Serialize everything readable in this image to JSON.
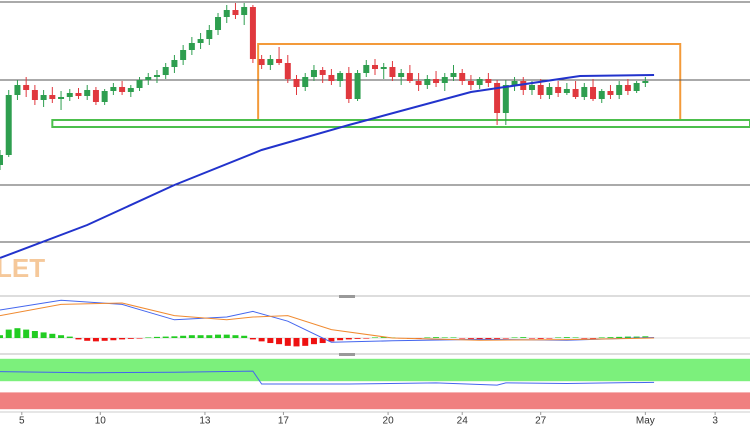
{
  "chart_data": [
    {
      "type": "candlestick",
      "watermark": "LET",
      "xlim": [
        0,
        86
      ],
      "ylim": [
        0,
        295
      ],
      "xticks": [
        {
          "value": 2.5,
          "label": "5"
        },
        {
          "value": 11.5,
          "label": "10"
        },
        {
          "value": 23.5,
          "label": "13"
        },
        {
          "value": 32.5,
          "label": "17"
        },
        {
          "value": 44.5,
          "label": "20"
        },
        {
          "value": 53,
          "label": "24"
        },
        {
          "value": 62,
          "label": "27"
        },
        {
          "value": 74,
          "label": "May"
        },
        {
          "value": 82,
          "label": "3"
        }
      ],
      "up_color": "#2e9e4f",
      "down_color": "#e0383e",
      "ohlc": [
        [
          130,
          145,
          125,
          140
        ],
        [
          140,
          205,
          138,
          200
        ],
        [
          200,
          215,
          195,
          210
        ],
        [
          210,
          218,
          198,
          205
        ],
        [
          205,
          210,
          190,
          195
        ],
        [
          195,
          205,
          188,
          200
        ],
        [
          200,
          208,
          192,
          196
        ],
        [
          196,
          204,
          185,
          198
        ],
        [
          198,
          206,
          194,
          202
        ],
        [
          202,
          207,
          196,
          199
        ],
        [
          199,
          210,
          195,
          205
        ],
        [
          205,
          208,
          190,
          193
        ],
        [
          193,
          206,
          190,
          204
        ],
        [
          204,
          212,
          200,
          208
        ],
        [
          208,
          214,
          200,
          203
        ],
        [
          203,
          210,
          198,
          207
        ],
        [
          207,
          218,
          204,
          215
        ],
        [
          215,
          222,
          210,
          218
        ],
        [
          218,
          225,
          212,
          220
        ],
        [
          220,
          232,
          216,
          228
        ],
        [
          228,
          240,
          222,
          235
        ],
        [
          235,
          250,
          230,
          245
        ],
        [
          245,
          258,
          240,
          252
        ],
        [
          252,
          262,
          246,
          256
        ],
        [
          256,
          270,
          250,
          265
        ],
        [
          265,
          282,
          260,
          278
        ],
        [
          278,
          290,
          272,
          285
        ],
        [
          285,
          292,
          276,
          280
        ],
        [
          280,
          292,
          270,
          288
        ],
        [
          288,
          290,
          232,
          236
        ],
        [
          236,
          240,
          226,
          230
        ],
        [
          230,
          240,
          225,
          236
        ],
        [
          236,
          248,
          230,
          232
        ],
        [
          232,
          240,
          212,
          216
        ],
        [
          216,
          220,
          200,
          208
        ],
        [
          208,
          222,
          204,
          218
        ],
        [
          218,
          230,
          214,
          225
        ],
        [
          225,
          228,
          212,
          220
        ],
        [
          220,
          226,
          210,
          214
        ],
        [
          214,
          224,
          208,
          222
        ],
        [
          222,
          228,
          192,
          196
        ],
        [
          196,
          225,
          194,
          222
        ],
        [
          222,
          235,
          218,
          230
        ],
        [
          230,
          236,
          220,
          226
        ],
        [
          226,
          232,
          216,
          228
        ],
        [
          228,
          234,
          214,
          218
        ],
        [
          218,
          226,
          210,
          222
        ],
        [
          222,
          230,
          212,
          214
        ],
        [
          214,
          222,
          204,
          210
        ],
        [
          210,
          220,
          206,
          216
        ],
        [
          216,
          224,
          208,
          212
        ],
        [
          212,
          222,
          204,
          218
        ],
        [
          218,
          230,
          214,
          222
        ],
        [
          222,
          226,
          210,
          214
        ],
        [
          214,
          220,
          205,
          210
        ],
        [
          210,
          218,
          206,
          216
        ],
        [
          216,
          222,
          208,
          212
        ],
        [
          212,
          215,
          170,
          182
        ],
        [
          182,
          215,
          170,
          210
        ],
        [
          210,
          218,
          204,
          214
        ],
        [
          214,
          218,
          200,
          205
        ],
        [
          205,
          214,
          200,
          210
        ],
        [
          210,
          216,
          196,
          200
        ],
        [
          200,
          212,
          196,
          208
        ],
        [
          208,
          214,
          198,
          202
        ],
        [
          202,
          212,
          200,
          206
        ],
        [
          206,
          214,
          196,
          198
        ],
        [
          198,
          212,
          195,
          208
        ],
        [
          208,
          216,
          194,
          196
        ],
        [
          196,
          206,
          192,
          204
        ],
        [
          204,
          210,
          196,
          200
        ],
        [
          200,
          214,
          196,
          210
        ],
        [
          210,
          216,
          200,
          204
        ],
        [
          204,
          214,
          202,
          212
        ],
        [
          212,
          218,
          208,
          214
        ]
      ],
      "moving_average": {
        "color": "#2233cc",
        "x": [
          0,
          10,
          20,
          30,
          40,
          54,
          66.5,
          75
        ],
        "y": [
          37,
          70,
          110,
          145,
          170,
          203,
          219,
          220
        ]
      },
      "levels": {
        "color": "#555555",
        "values": [
          293,
          215,
          110,
          53
        ]
      },
      "zones": [
        {
          "color": "#f39a3a",
          "x": [
            29.6,
            78
          ],
          "y": [
            175,
            251
          ]
        },
        {
          "color": "#4cbf4c",
          "x": [
            6,
            86
          ],
          "y": [
            168,
            175
          ]
        }
      ]
    },
    {
      "type": "macd",
      "ylim": [
        -0.5,
        1.5
      ],
      "histogram": [
        0.1,
        0.3,
        0.35,
        0.3,
        0.25,
        0.2,
        0.15,
        0.1,
        0.05,
        -0.05,
        -0.1,
        -0.12,
        -0.1,
        -0.08,
        -0.05,
        -0.03,
        -0.02,
        0.02,
        0.04,
        0.05,
        0.06,
        0.08,
        0.1,
        0.1,
        0.1,
        0.12,
        0.12,
        0.1,
        0.08,
        -0.05,
        -0.12,
        -0.18,
        -0.22,
        -0.28,
        -0.3,
        -0.28,
        -0.22,
        -0.18,
        -0.12,
        -0.08,
        -0.05,
        -0.03,
        -0.02,
        0.02,
        0.03,
        0.02,
        -0.02,
        -0.03,
        -0.02,
        0.02,
        0.03,
        0.02,
        0.02,
        -0.02,
        -0.03,
        -0.05,
        -0.04,
        -0.03,
        -0.02,
        0.02,
        0.03,
        -0.02,
        -0.03,
        -0.02,
        0.02,
        0.03,
        0.02,
        -0.02,
        -0.02,
        0.02,
        0.03,
        0.04,
        0.05,
        0.05,
        0.06
      ],
      "pos_color": "#22cc22",
      "neg_color": "#ee1111",
      "series": [
        {
          "color": "#4466ee",
          "x": [
            0,
            7,
            14,
            20,
            26,
            29,
            33,
            38,
            45,
            55,
            65,
            75
          ],
          "values": [
            1.0,
            1.35,
            1.2,
            0.65,
            0.75,
            0.95,
            0.6,
            -0.15,
            -0.1,
            -0.05,
            -0.08,
            0.02
          ]
        },
        {
          "color": "#f08a30",
          "x": [
            0,
            7,
            14,
            20,
            26,
            29,
            33,
            38,
            45,
            55,
            65,
            75
          ],
          "values": [
            0.8,
            1.2,
            1.25,
            0.8,
            0.65,
            0.75,
            0.8,
            0.3,
            0.0,
            -0.08,
            -0.06,
            0.0
          ]
        }
      ]
    },
    {
      "type": "rsi",
      "ylim": [
        0,
        100
      ],
      "bands": [
        {
          "color": "#7cf07c",
          "range": [
            55,
            95
          ]
        },
        {
          "color": "#f08080",
          "range": [
            5,
            35
          ]
        }
      ],
      "series": [
        {
          "color": "#4466ee",
          "x": [
            0,
            10,
            20,
            29,
            30,
            40,
            50,
            57,
            58,
            65,
            75
          ],
          "values": [
            72,
            70,
            71,
            73,
            50,
            50,
            52,
            48,
            52,
            51,
            53
          ]
        }
      ]
    }
  ]
}
